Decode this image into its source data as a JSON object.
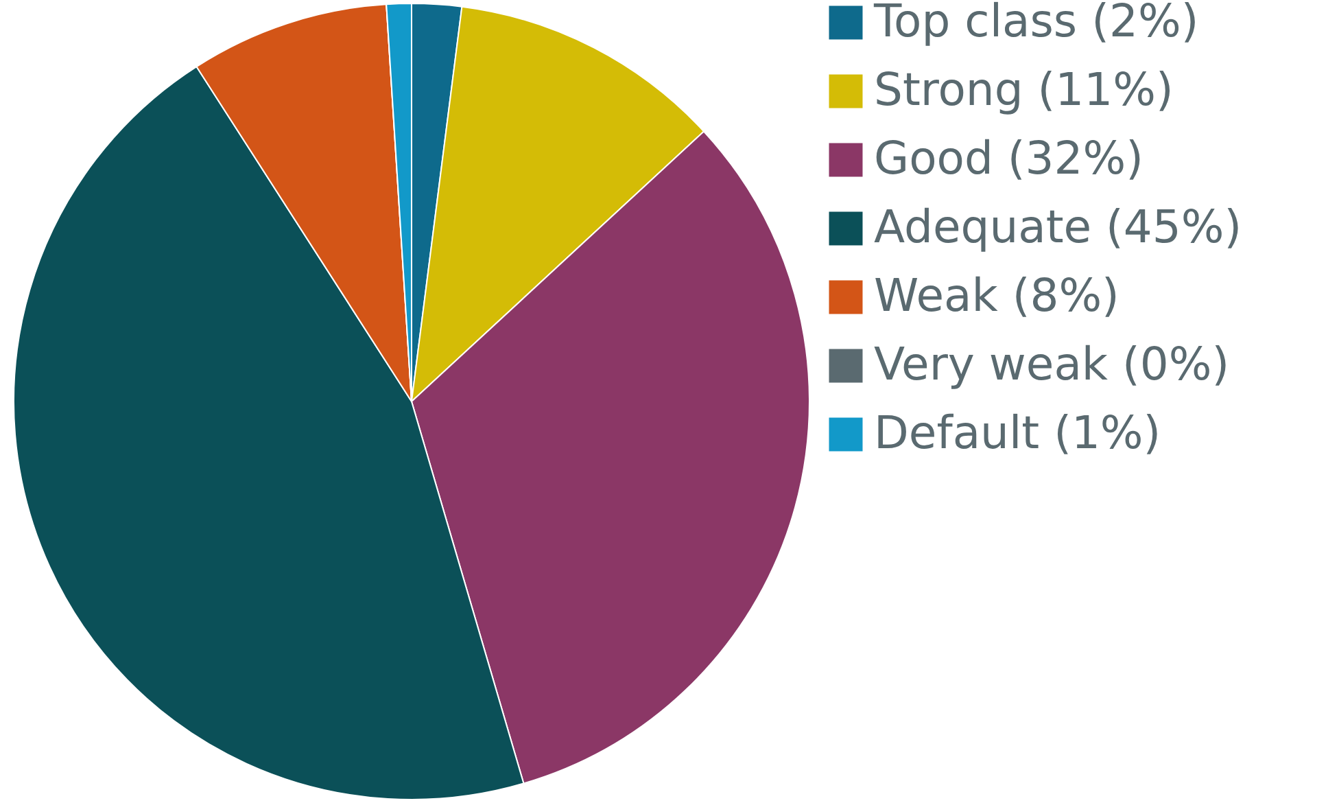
{
  "chart_data": {
    "type": "pie",
    "categories": [
      "Top class (2%)",
      "Strong (11%)",
      "Good (32%)",
      "Adequate (45%)",
      "Weak (8%)",
      "Very weak (0%)",
      "Default (1%)"
    ],
    "values": [
      2,
      11,
      32,
      45,
      8,
      0,
      1
    ],
    "colors": [
      "#0e6a8c",
      "#d4bc06",
      "#8b3766",
      "#0b5058",
      "#d35517",
      "#5a6a70",
      "#1299c9"
    ],
    "legend": "right"
  }
}
